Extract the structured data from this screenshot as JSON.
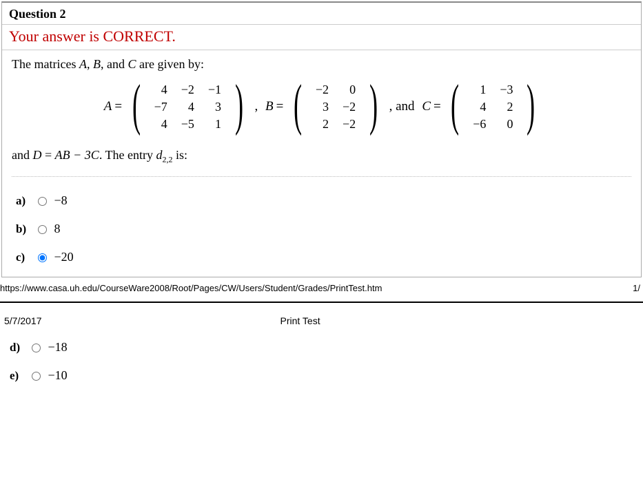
{
  "question": {
    "title": "Question 2",
    "status": "Your answer is CORRECT.",
    "intro_pre": "The matrices ",
    "intro_names": [
      "A",
      "B",
      "C"
    ],
    "intro_post": " are given by:",
    "matrices": {
      "A": {
        "label": "A",
        "rows": [
          [
            "4",
            "−2",
            "−1"
          ],
          [
            "−7",
            "4",
            "3"
          ],
          [
            "4",
            "−5",
            "1"
          ]
        ]
      },
      "B": {
        "label": "B",
        "rows": [
          [
            "−2",
            "0"
          ],
          [
            "3",
            "−2"
          ],
          [
            "2",
            "−2"
          ]
        ]
      },
      "C": {
        "label": "C",
        "rows": [
          [
            "1",
            "−3"
          ],
          [
            "4",
            "2"
          ],
          [
            "−6",
            "0"
          ]
        ]
      }
    },
    "between_AB": ",  ",
    "between_BC": ",  and ",
    "entry_line_pre": "and ",
    "entry_D": "D",
    "entry_eq": " = ",
    "entry_expr": "AB − 3C",
    "entry_post1": ". The entry ",
    "entry_dsym": "d",
    "entry_sub": "2,2",
    "entry_post2": " is:",
    "choices": [
      {
        "letter": "a)",
        "value": "−8",
        "selected": false
      },
      {
        "letter": "b)",
        "value": "8",
        "selected": false
      },
      {
        "letter": "c)",
        "value": "−20",
        "selected": true
      },
      {
        "letter": "d)",
        "value": "−18",
        "selected": false
      },
      {
        "letter": "e)",
        "value": "−10",
        "selected": false
      }
    ]
  },
  "footer": {
    "url": "https://www.casa.uh.edu/CourseWare2008/Root/Pages/CW/Users/Student/Grades/PrintTest.htm",
    "page_right": "1/",
    "date": "5/7/2017",
    "center_title": "Print Test"
  },
  "colors": {
    "status": "#c00000",
    "border": "#aaaaaa",
    "rule": "#000000"
  }
}
